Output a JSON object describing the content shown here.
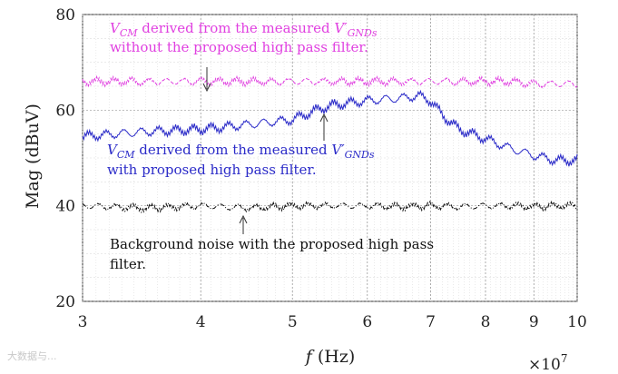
{
  "chart_data": {
    "type": "line",
    "xlabel": "f (Hz)",
    "ylabel": "Mag (dBuV)",
    "x_scale": "log",
    "x_multiplier": "×10^7",
    "xlim": [
      30000000,
      100000000
    ],
    "ylim": [
      20,
      80
    ],
    "xticks": [
      3,
      4,
      5,
      6,
      7,
      8,
      9,
      10
    ],
    "yticks": [
      20,
      40,
      60,
      80
    ],
    "grid": "on",
    "series": [
      {
        "color": "#e040e0",
        "style": "dashed",
        "x": [
          30000000,
          35000000,
          40000000,
          45000000,
          50000000,
          55000000,
          60000000,
          65000000,
          70000000,
          75000000,
          80000000,
          85000000,
          90000000,
          95000000,
          100000000
        ],
        "values": [
          66,
          66,
          66,
          66,
          66,
          66,
          66,
          66,
          66,
          66,
          66,
          66,
          65.5,
          65.5,
          65.5
        ]
      },
      {
        "color": "#2b2bc8",
        "style": "solid",
        "x": [
          30000000,
          35000000,
          40000000,
          45000000,
          50000000,
          53000000,
          55000000,
          60000000,
          65000000,
          68000000,
          70000000,
          72000000,
          75000000,
          80000000,
          85000000,
          90000000,
          95000000,
          100000000
        ],
        "values": [
          54.5,
          55.5,
          56,
          57,
          58,
          60,
          61,
          62,
          62.5,
          63,
          62,
          59,
          56,
          54,
          52,
          50.5,
          49.5,
          49.5
        ]
      },
      {
        "color": "#111111",
        "style": "dash-dot",
        "x": [
          30000000,
          35000000,
          40000000,
          45000000,
          50000000,
          55000000,
          60000000,
          65000000,
          70000000,
          75000000,
          80000000,
          85000000,
          90000000,
          95000000,
          100000000
        ],
        "values": [
          40,
          39.5,
          40,
          39.5,
          40,
          40,
          40,
          39.8,
          40,
          39.8,
          40,
          40,
          39.8,
          40,
          40
        ]
      }
    ],
    "annotations": [
      {
        "line1_a": "V",
        "line1_sub": "CM",
        "line1_b": " derived from the measured ",
        "line1_c": "V′",
        "line1_sub2": "GNDs",
        "line2": "without the proposed high pass filter.",
        "color": "#e040e0"
      },
      {
        "line1_a": "V",
        "line1_sub": "CM",
        "line1_b": " derived from the measured ",
        "line1_c": "V′",
        "line1_sub2": "GNDs",
        "line2": "with proposed high pass filter.",
        "color": "#2b2bc8"
      },
      {
        "line1": "Background noise with the proposed high pass",
        "line2": "filter.",
        "color": "#111111"
      }
    ]
  },
  "watermark": "大数据与..."
}
